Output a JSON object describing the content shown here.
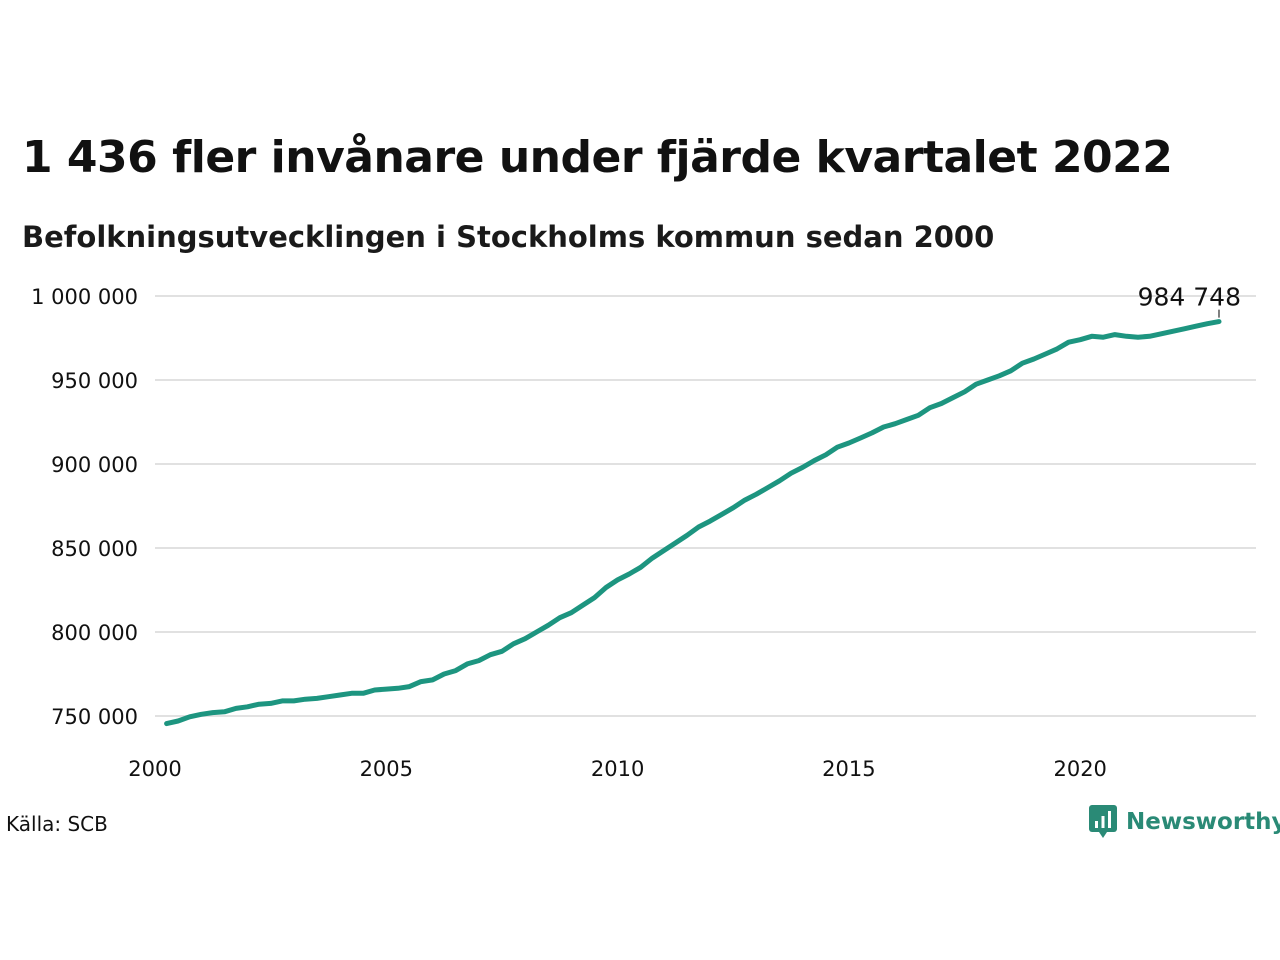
{
  "chart_data": {
    "type": "line",
    "title": "1 436 fler invånare under fjärde kvartalet 2022",
    "subtitle": "Befolkningsutvecklingen i Stockholms kommun sedan 2000",
    "xlabel": "",
    "ylabel": "",
    "xlim": [
      2000,
      2023.8
    ],
    "ylim": [
      745000,
      1000000
    ],
    "grid": true,
    "x_ticks": [
      2000,
      2005,
      2010,
      2015,
      2020
    ],
    "x_tick_labels": [
      "2000",
      "2005",
      "2010",
      "2015",
      "2020"
    ],
    "y_ticks": [
      750000,
      800000,
      850000,
      900000,
      950000,
      1000000
    ],
    "y_tick_labels": [
      "750 000",
      "800 000",
      "850 000",
      "900 000",
      "950 000",
      "1 000 000"
    ],
    "line_color": "#1d9580",
    "end_label": "984 748",
    "series": [
      {
        "x": [
          2000.25,
          2000.5,
          2000.75,
          2001.0,
          2001.25,
          2001.5,
          2001.75,
          2002.0,
          2002.25,
          2002.5,
          2002.75,
          2003.0,
          2003.25,
          2003.5,
          2003.75,
          2004.0,
          2004.25,
          2004.5,
          2004.75,
          2005.0,
          2005.25,
          2005.5,
          2005.75,
          2006.0,
          2006.25,
          2006.5,
          2006.75,
          2007.0,
          2007.25,
          2007.5,
          2007.75,
          2008.0,
          2008.25,
          2008.5,
          2008.75,
          2009.0,
          2009.25,
          2009.5,
          2009.75,
          2010.0,
          2010.25,
          2010.5,
          2010.75,
          2011.0,
          2011.25,
          2011.5,
          2011.75,
          2012.0,
          2012.25,
          2012.5,
          2012.75,
          2013.0,
          2013.25,
          2013.5,
          2013.75,
          2014.0,
          2014.25,
          2014.5,
          2014.75,
          2015.0,
          2015.25,
          2015.5,
          2015.75,
          2016.0,
          2016.25,
          2016.5,
          2016.75,
          2017.0,
          2017.25,
          2017.5,
          2017.75,
          2018.0,
          2018.25,
          2018.5,
          2018.75,
          2019.0,
          2019.25,
          2019.5,
          2019.75,
          2020.0,
          2020.25,
          2020.5,
          2020.75,
          2021.0,
          2021.25,
          2021.5,
          2021.75,
          2022.0,
          2022.25,
          2022.5,
          2022.75,
          2023.0
        ],
        "values": [
          745500,
          747000,
          749500,
          751000,
          752000,
          752500,
          754500,
          755500,
          757000,
          757500,
          759000,
          759000,
          760000,
          760500,
          761500,
          762500,
          763500,
          763500,
          765500,
          766000,
          766500,
          767500,
          770500,
          771500,
          775000,
          777000,
          781000,
          783000,
          786500,
          788500,
          793000,
          796000,
          800000,
          804000,
          808500,
          811500,
          816000,
          820500,
          826500,
          831000,
          834500,
          838500,
          844000,
          848500,
          853000,
          857500,
          862500,
          866000,
          870000,
          874000,
          878500,
          882000,
          886000,
          890000,
          894500,
          898000,
          902000,
          905500,
          910000,
          912500,
          915500,
          918500,
          922000,
          924000,
          926500,
          929000,
          933500,
          936000,
          939500,
          943000,
          947500,
          950000,
          952500,
          955500,
          960000,
          962500,
          965500,
          968500,
          972500,
          974000,
          976000,
          975500,
          977000,
          976000,
          975500,
          976000,
          977500,
          979000,
          980500,
          982000,
          983500,
          984748
        ]
      }
    ]
  },
  "footer": {
    "source": "Källa: SCB",
    "brand": "Newsworthy",
    "brand_icon": "bar-chart-speech-bubble-icon",
    "brand_color": "#2a8a76"
  }
}
